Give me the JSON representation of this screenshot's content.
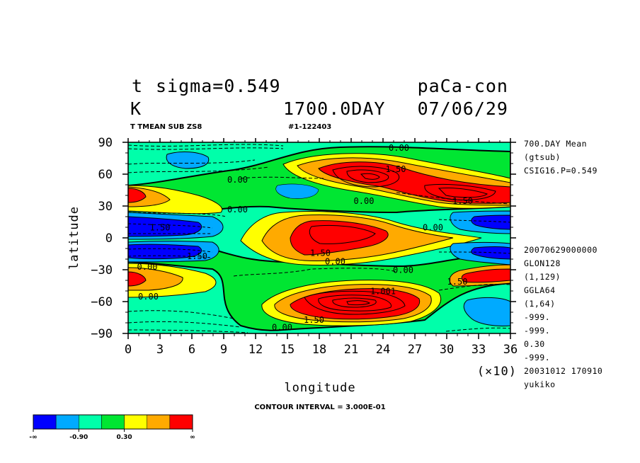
{
  "header": {
    "variable": "t",
    "level": "sigma=0.549",
    "experiment": "paCa-con",
    "units": "K",
    "time": "1700.0DAY",
    "date": "07/06/29",
    "subtitle": "T TMEAN SUB ZS8",
    "run_id": "#1-122403"
  },
  "side_info_top": [
    "700.DAY Mean",
    "(gtsub)",
    "CSIG16.P=0.549"
  ],
  "side_info_bottom": [
    "20070629000000",
    "GLON128",
    "(1,129)",
    "GGLA64",
    "(1,64)",
    "-999.",
    "-999.",
    "0.30",
    "-999.",
    "20031012 170910",
    "yukiko"
  ],
  "contour_interval": "CONTOUR INTERVAL = 3.000E-01",
  "colors": {
    "c1": "#0000ff",
    "c2": "#00aaff",
    "c3": "#00ffaa",
    "c4": "#00e632",
    "c5": "#ffff00",
    "c6": "#ffaa00",
    "c7": "#ff0000"
  },
  "colorbar": {
    "colors": [
      "#0000ff",
      "#00aaff",
      "#00ffaa",
      "#00e632",
      "#ffff00",
      "#ffaa00",
      "#ff0000"
    ],
    "labels": [
      "-∞",
      "-0.90",
      "0.30",
      "∞"
    ]
  },
  "chart_data": {
    "type": "heatmap",
    "xlabel": "longitude",
    "ylabel": "latitude",
    "x_multiplier": "(×10)",
    "xlim": [
      0,
      36
    ],
    "ylim": [
      -90,
      90
    ],
    "x_ticks": [
      "0",
      "3",
      "6",
      "9",
      "12",
      "15",
      "18",
      "21",
      "24",
      "27",
      "30",
      "33",
      "36"
    ],
    "y_ticks": [
      "90",
      "60",
      "30",
      "0",
      "−30",
      "−60",
      "−90"
    ],
    "contour_labels": [
      {
        "text": "0.00",
        "x": 25.5,
        "y": 84
      },
      {
        "text": "1.50",
        "x": 25.2,
        "y": 64
      },
      {
        "text": "0.00",
        "x": 10.3,
        "y": 54
      },
      {
        "text": "0.00",
        "x": 22.2,
        "y": 34
      },
      {
        "text": "1.50",
        "x": 31.5,
        "y": 34
      },
      {
        "text": "0.00",
        "x": 10.3,
        "y": 26
      },
      {
        "text": "0.00",
        "x": 28.7,
        "y": 9
      },
      {
        "text": "1.50",
        "x": 3.0,
        "y": 9
      },
      {
        "text": "1.50",
        "x": 18.1,
        "y": -15
      },
      {
        "text": "0.00",
        "x": 19.5,
        "y": -23
      },
      {
        "text": "1.50",
        "x": 6.5,
        "y": -18
      },
      {
        "text": "0.00",
        "x": 1.8,
        "y": -28
      },
      {
        "text": "0.00",
        "x": 25.9,
        "y": -31
      },
      {
        "text": "1.50",
        "x": 31.0,
        "y": -42
      },
      {
        "text": "0.00",
        "x": 1.9,
        "y": -56
      },
      {
        "text": "1.001",
        "x": 24.0,
        "y": -51
      },
      {
        "text": "1.50",
        "x": 17.5,
        "y": -78
      },
      {
        "text": "0.00",
        "x": 14.5,
        "y": -85
      }
    ]
  }
}
